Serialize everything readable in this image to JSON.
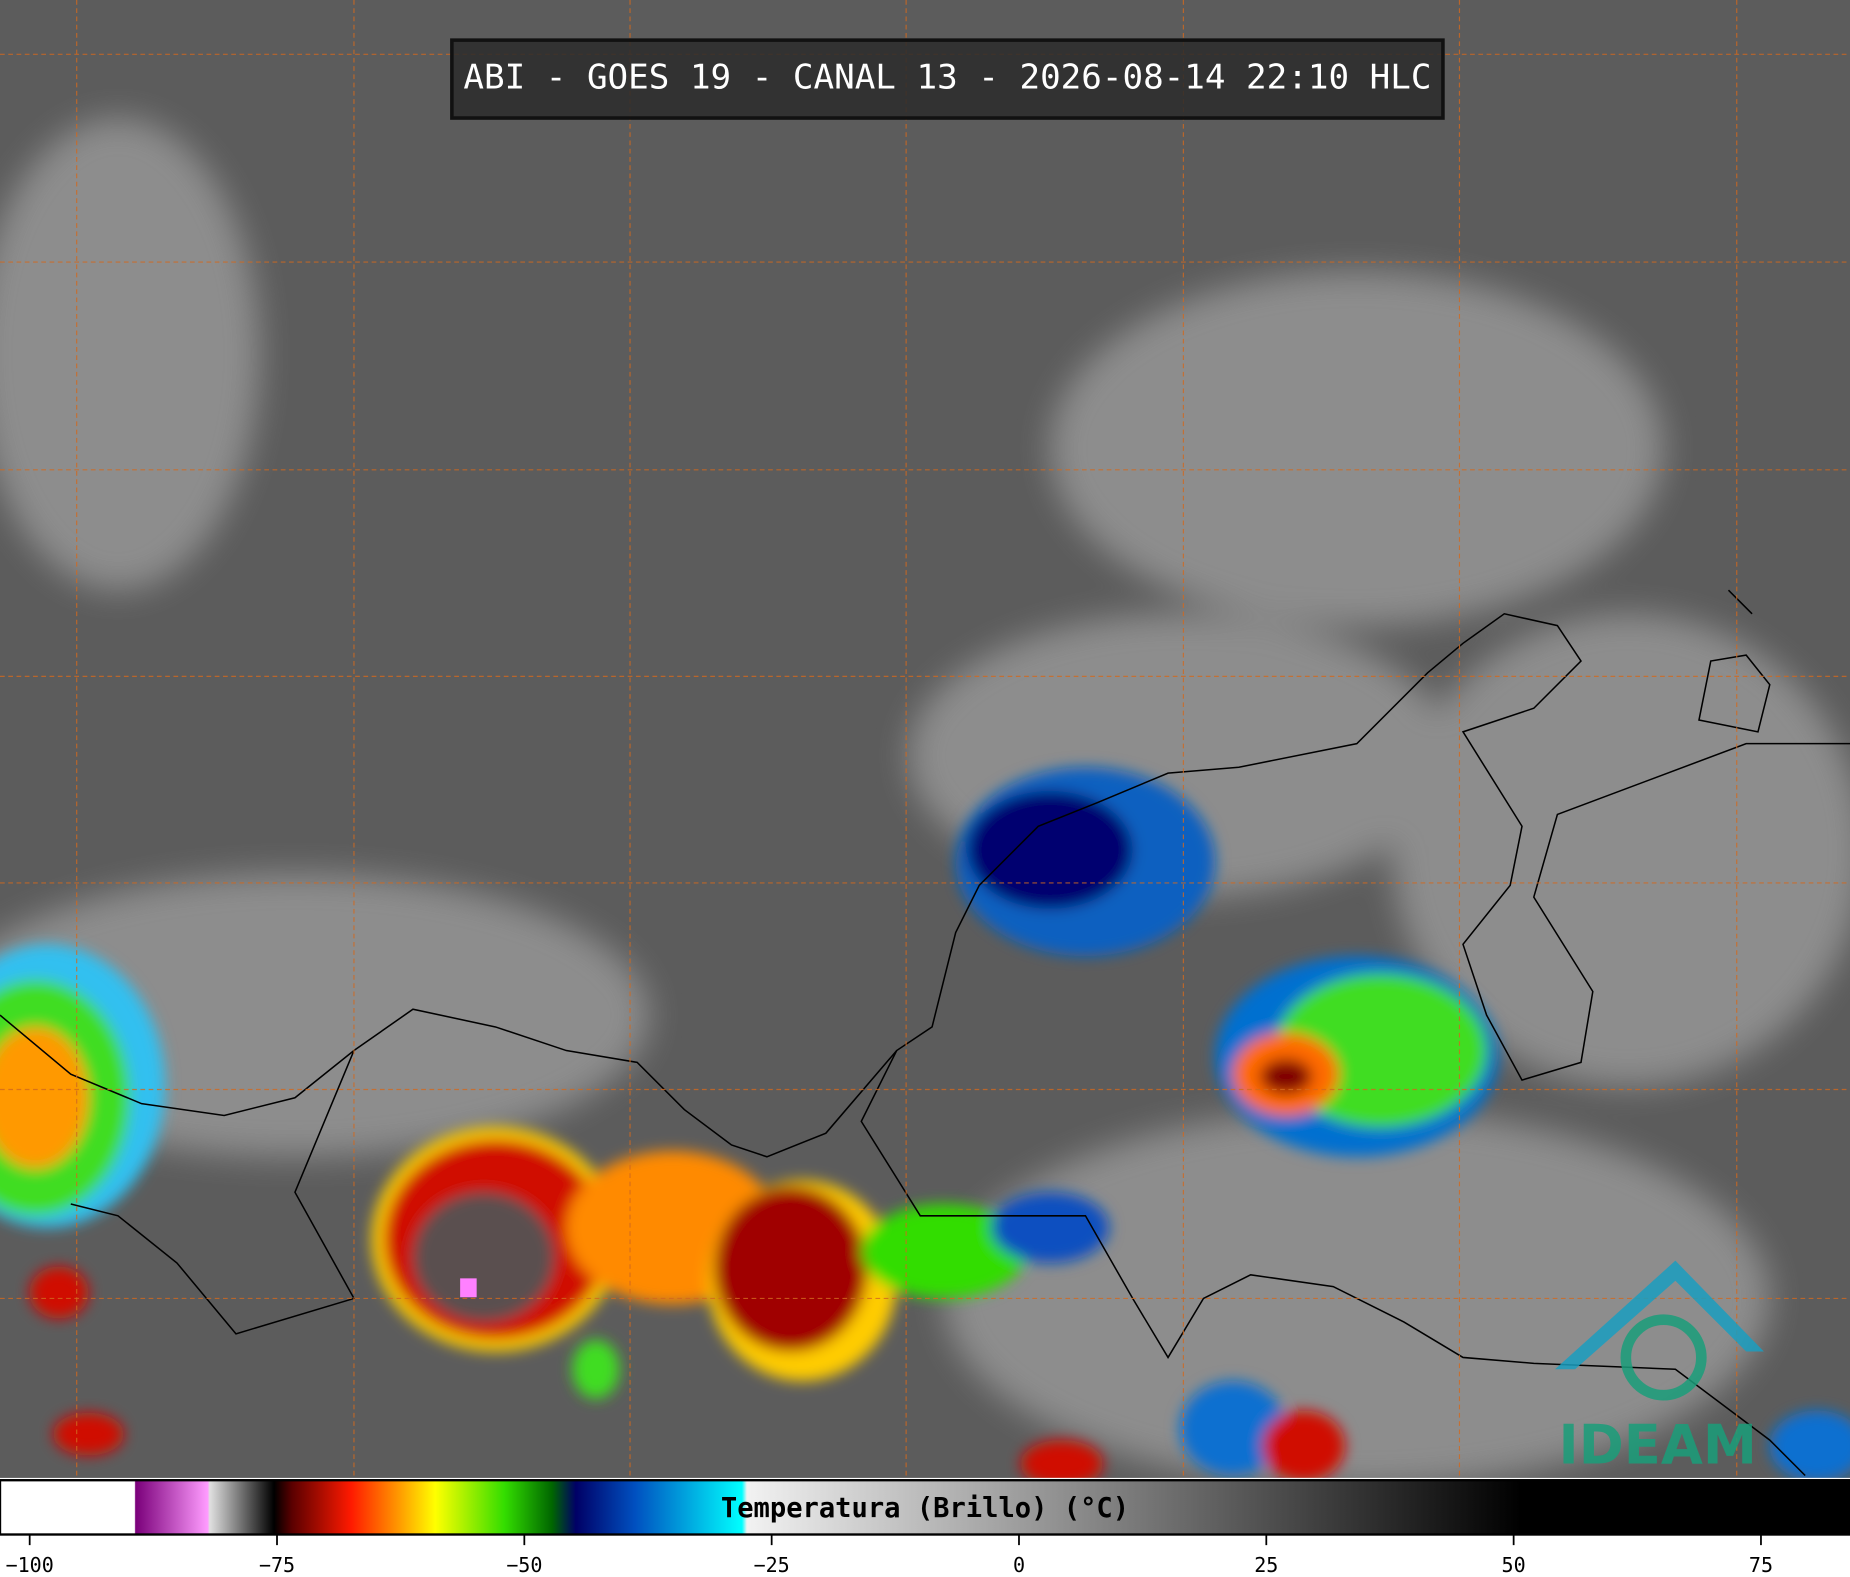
{
  "title": "ABI - GOES 19 - CANAL 13 - 2026-08-14 22:10 HLC",
  "colorbar": {
    "label": "Temperatura (Brillo) (°C)",
    "lim": [
      -103,
      84
    ],
    "ticks": [
      {
        "value": -100,
        "label": "−100"
      },
      {
        "value": -75,
        "label": "−75"
      },
      {
        "value": -50,
        "label": "−50"
      },
      {
        "value": -25,
        "label": "−25"
      },
      0,
      25,
      50,
      75
    ],
    "stops": [
      {
        "value": -89.4,
        "color": "#ffffff"
      },
      {
        "value": -89.3,
        "color": "#7a007a"
      },
      {
        "value": -82,
        "color": "#ff9cff"
      },
      {
        "value": -81.8,
        "color": "#e0e0e0"
      },
      {
        "value": -75.3,
        "color": "#000000"
      },
      {
        "value": -73.5,
        "color": "#5a0000"
      },
      {
        "value": -67.5,
        "color": "#ff1a00"
      },
      {
        "value": -62.7,
        "color": "#ff9900"
      },
      {
        "value": -59,
        "color": "#ffff00"
      },
      {
        "value": -52,
        "color": "#33dd00"
      },
      {
        "value": -47.2,
        "color": "#006600"
      },
      {
        "value": -44.8,
        "color": "#000066"
      },
      {
        "value": -38.8,
        "color": "#0050c0"
      },
      {
        "value": -28,
        "color": "#00ffff"
      },
      {
        "value": -27.5,
        "color": "#f2f2f2"
      },
      {
        "value": 50.8,
        "color": "#000000"
      }
    ]
  },
  "logo": {
    "text": "IDEAM"
  }
}
